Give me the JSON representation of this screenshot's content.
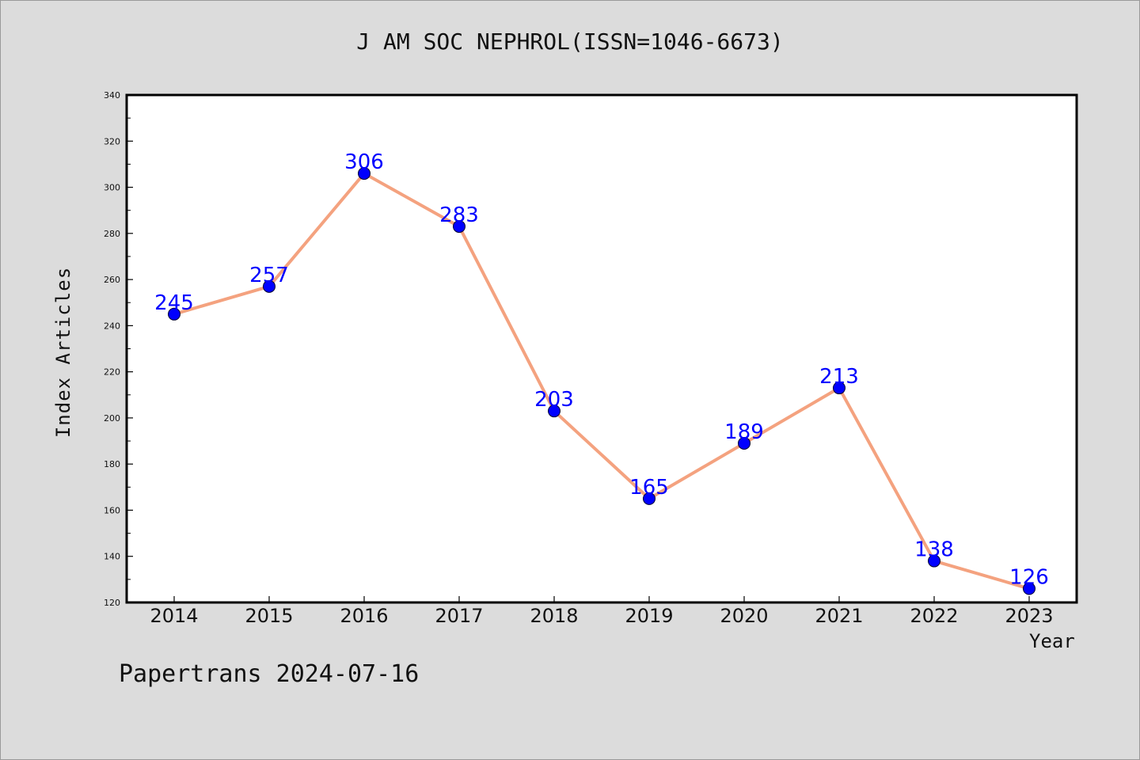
{
  "chart_data": {
    "type": "line",
    "title": "J AM SOC NEPHROL(ISSN=1046-6673)",
    "xlabel": "Year",
    "ylabel": "Index Articles",
    "categories": [
      "2014",
      "2015",
      "2016",
      "2017",
      "2018",
      "2019",
      "2020",
      "2021",
      "2022",
      "2023"
    ],
    "series": [
      {
        "values": [
          245,
          257,
          306,
          283,
          203,
          165,
          189,
          213,
          138,
          126
        ]
      }
    ],
    "ylim": [
      120,
      340
    ],
    "yticks": [
      120,
      140,
      160,
      180,
      200,
      220,
      240,
      260,
      280,
      300,
      320,
      340
    ],
    "grid": false,
    "data_labels": true
  },
  "colors": {
    "line": "#f4a27f",
    "marker": "#0000ff",
    "label": "#0000ff"
  },
  "footer": "Papertrans 2024-07-16"
}
